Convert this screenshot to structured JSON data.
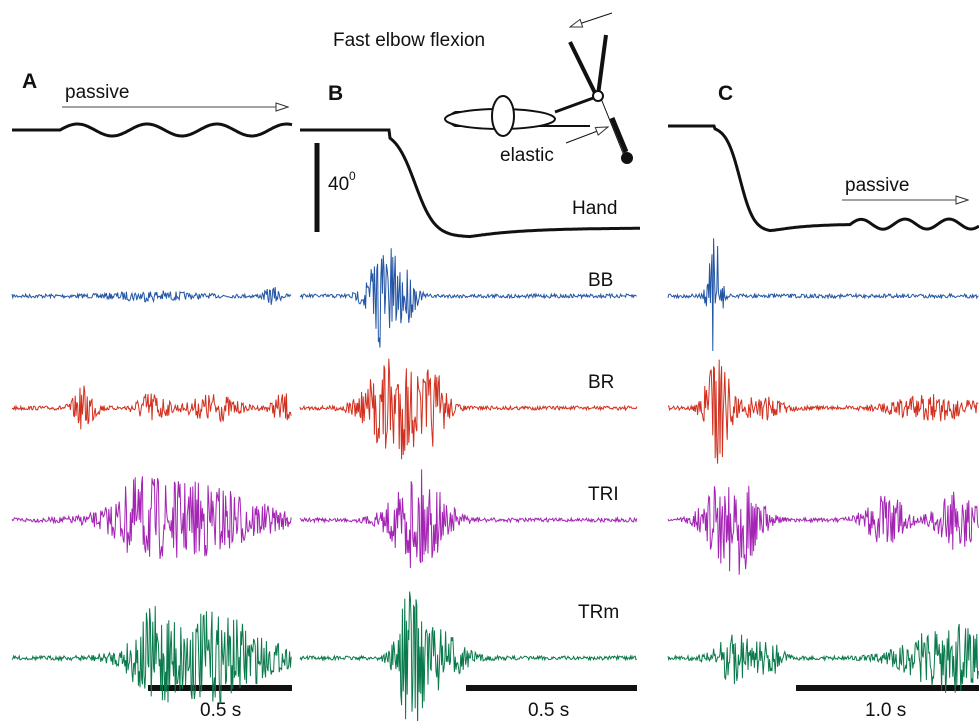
{
  "title": "Fast elbow flexion",
  "inset_label": "elastic",
  "channels": [
    "BB",
    "BR",
    "TRI",
    "TRm"
  ],
  "panels": [
    {
      "label": "A",
      "annotation": "passive",
      "scale_bar": "0.5 s"
    },
    {
      "label": "B",
      "scale_bar": "0.5 s",
      "angle_scale": "40",
      "angle_unit": "0",
      "hand_label": "Hand"
    },
    {
      "label": "C",
      "annotation": "passive",
      "scale_bar": "1.0 s"
    }
  ]
}
